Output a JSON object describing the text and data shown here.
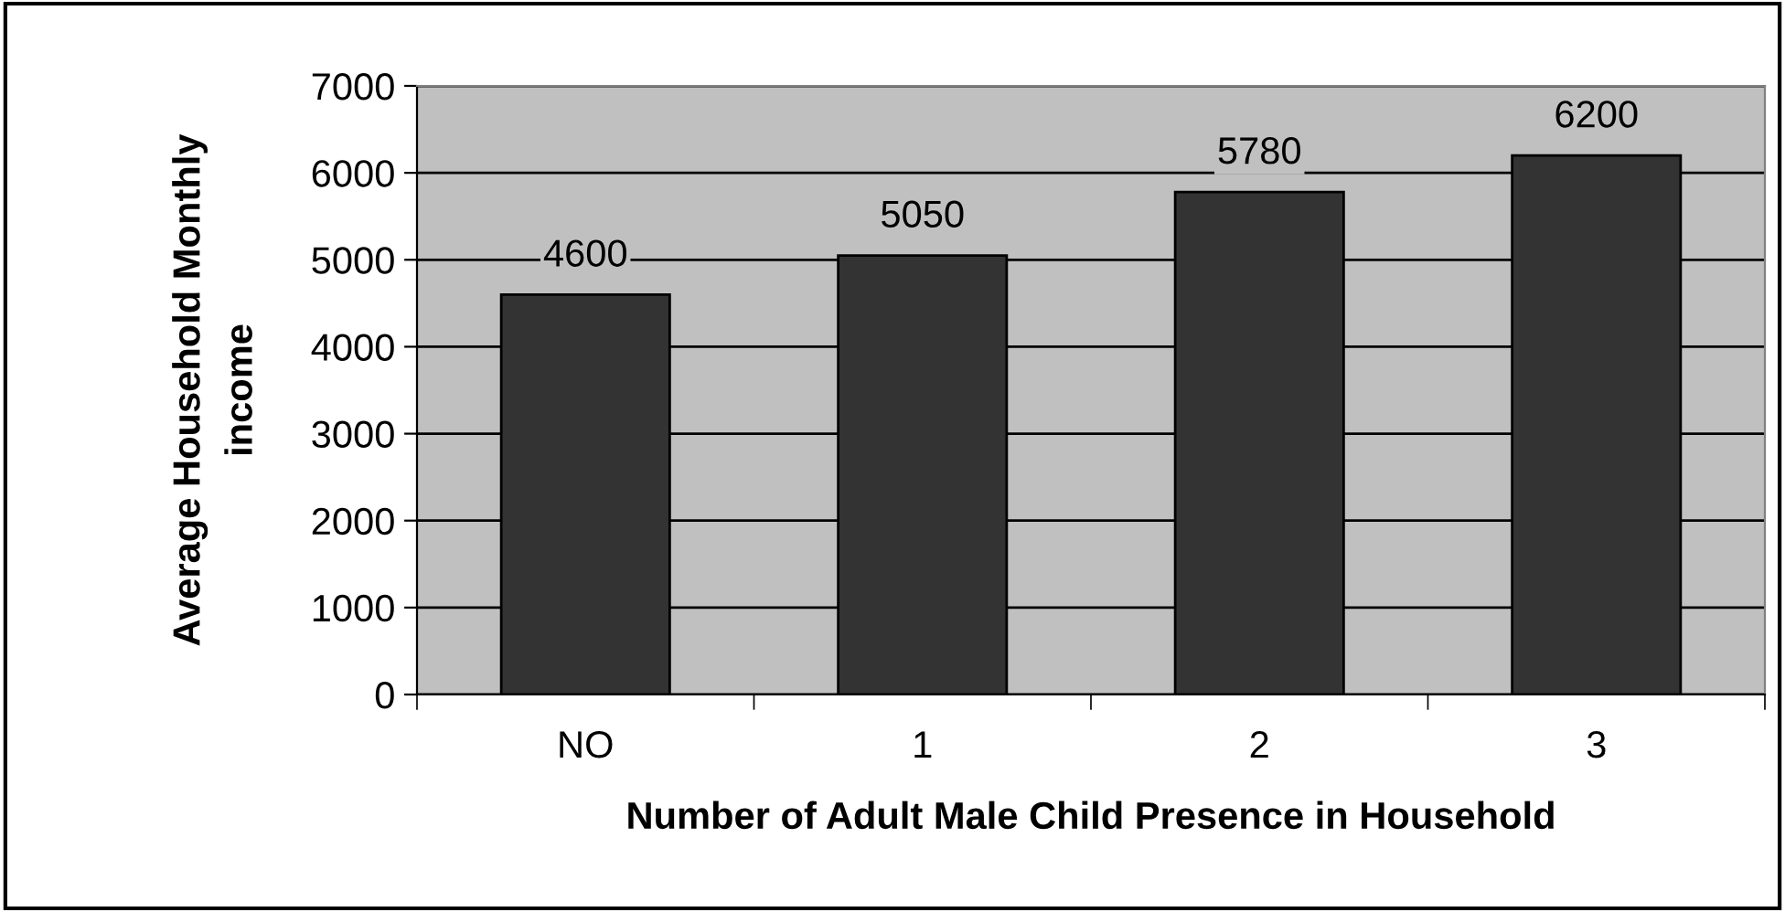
{
  "chart_data": {
    "type": "bar",
    "xlabel": "Number of Adult Male Child Presence in Household",
    "ylabel": "Average Household Monthly income",
    "categories": [
      "NO",
      "1",
      "2",
      "3"
    ],
    "values": [
      4600,
      5050,
      5780,
      6200
    ],
    "color": "#333333",
    "ylim": [
      0,
      7000
    ],
    "yticks": [
      0,
      1000,
      2000,
      3000,
      4000,
      5000,
      6000,
      7000
    ],
    "grid": "y",
    "data_labels": true
  }
}
